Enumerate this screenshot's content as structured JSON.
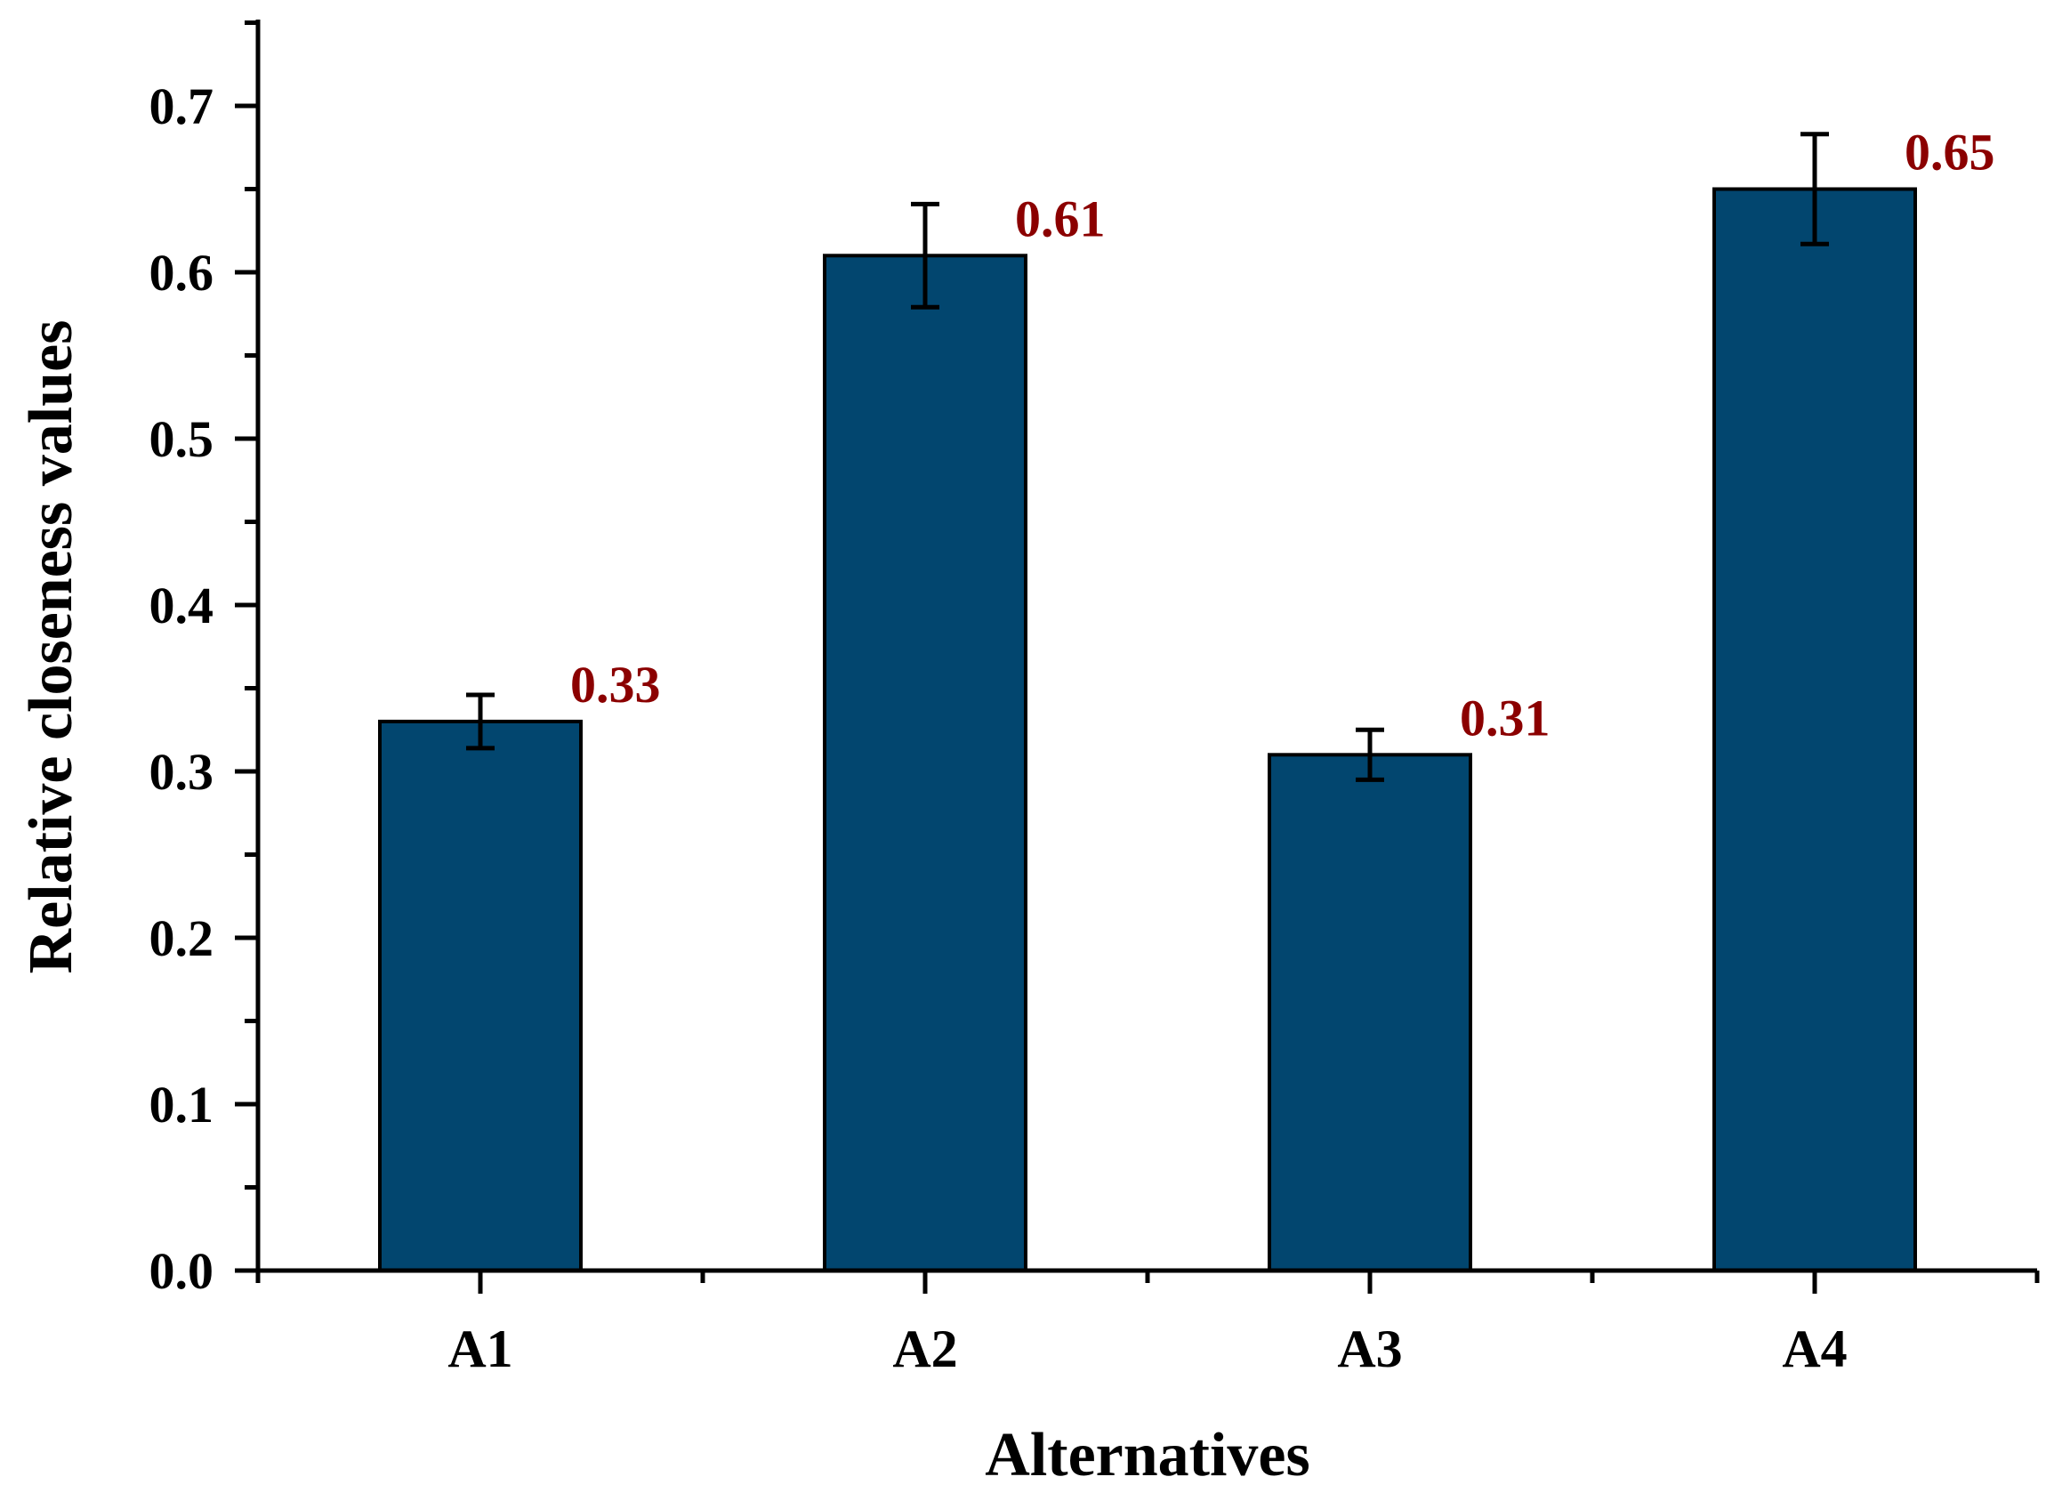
{
  "colors": {
    "bar_fill": "#02466F",
    "bar_stroke": "#000000",
    "value_label": "#8B0000",
    "axis": "#000000"
  },
  "chart_data": {
    "type": "bar",
    "xlabel": "Alternatives",
    "ylabel": "Relative closeness values",
    "categories": [
      "A1",
      "A2",
      "A3",
      "A4"
    ],
    "values": [
      0.33,
      0.61,
      0.31,
      0.65
    ],
    "error": [
      0.016,
      0.031,
      0.015,
      0.033
    ],
    "data_labels": [
      "0.33",
      "0.61",
      "0.31",
      "0.65"
    ],
    "ylim": [
      0,
      0.75
    ],
    "yticks": [
      0.0,
      0.1,
      0.2,
      0.3,
      0.4,
      0.5,
      0.6,
      0.7
    ],
    "ytick_labels": [
      "0.0",
      "0.1",
      "0.2",
      "0.3",
      "0.4",
      "0.5",
      "0.6",
      "0.7"
    ],
    "grid": false,
    "legend": "none"
  }
}
